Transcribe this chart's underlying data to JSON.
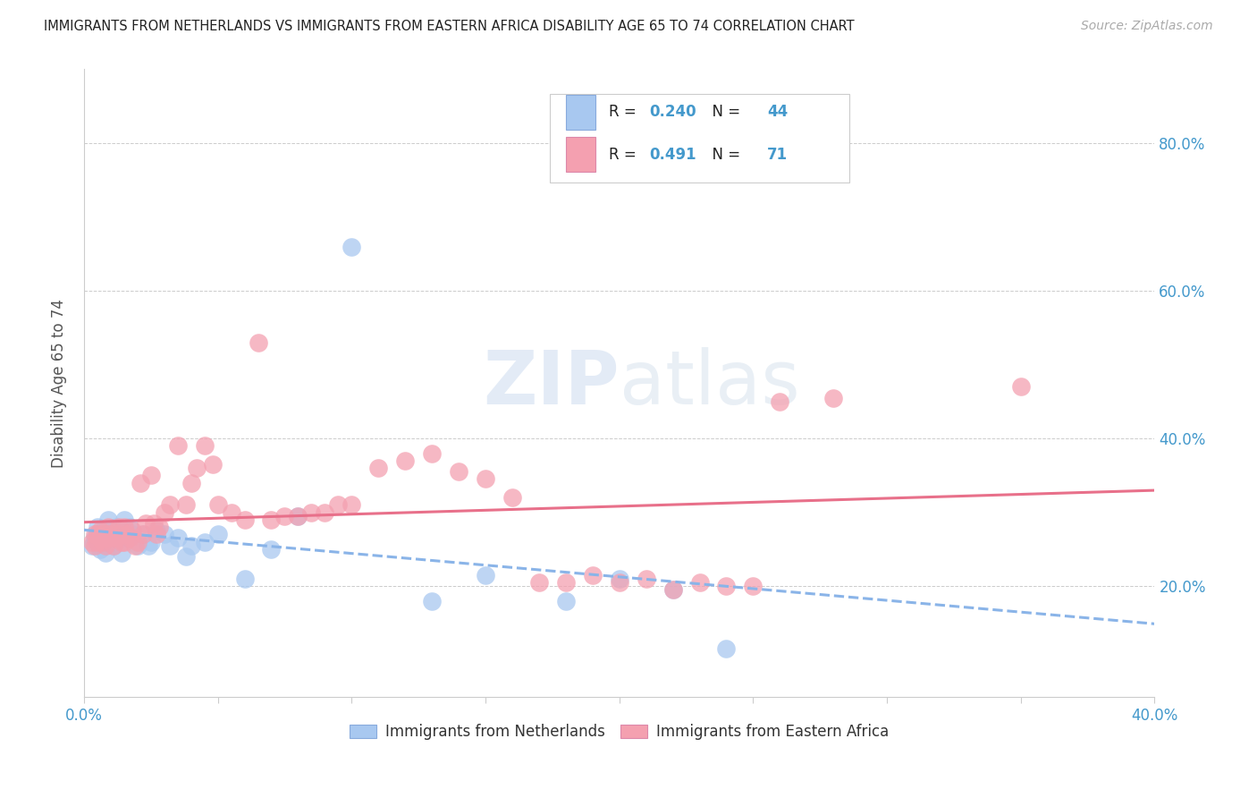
{
  "title": "IMMIGRANTS FROM NETHERLANDS VS IMMIGRANTS FROM EASTERN AFRICA DISABILITY AGE 65 TO 74 CORRELATION CHART",
  "source": "Source: ZipAtlas.com",
  "ylabel": "Disability Age 65 to 74",
  "xlim": [
    0.0,
    0.4
  ],
  "ylim": [
    0.05,
    0.9
  ],
  "watermark_line1": "ZIP",
  "watermark_line2": "atlas",
  "legend_R1": "0.240",
  "legend_N1": "44",
  "legend_R2": "0.491",
  "legend_N2": "71",
  "color_netherlands": "#a8c8f0",
  "color_eastern_africa": "#f4a0b0",
  "color_netherlands_trendline": "#8ab4e8",
  "color_eastern_africa_trendline": "#e8708a",
  "background_color": "#ffffff",
  "nl_x": [
    0.003,
    0.004,
    0.005,
    0.005,
    0.006,
    0.006,
    0.007,
    0.007,
    0.008,
    0.008,
    0.009,
    0.009,
    0.01,
    0.01,
    0.011,
    0.012,
    0.013,
    0.014,
    0.015,
    0.016,
    0.017,
    0.018,
    0.02,
    0.022,
    0.024,
    0.025,
    0.027,
    0.03,
    0.032,
    0.035,
    0.038,
    0.04,
    0.045,
    0.05,
    0.06,
    0.07,
    0.08,
    0.1,
    0.13,
    0.15,
    0.18,
    0.2,
    0.22,
    0.24
  ],
  "nl_y": [
    0.255,
    0.265,
    0.27,
    0.28,
    0.26,
    0.25,
    0.275,
    0.26,
    0.265,
    0.245,
    0.29,
    0.26,
    0.265,
    0.27,
    0.255,
    0.28,
    0.265,
    0.245,
    0.29,
    0.265,
    0.28,
    0.27,
    0.255,
    0.27,
    0.255,
    0.26,
    0.275,
    0.27,
    0.255,
    0.265,
    0.24,
    0.255,
    0.26,
    0.27,
    0.21,
    0.25,
    0.295,
    0.66,
    0.18,
    0.215,
    0.18,
    0.21,
    0.195,
    0.115
  ],
  "ea_x": [
    0.003,
    0.004,
    0.004,
    0.005,
    0.005,
    0.006,
    0.006,
    0.007,
    0.007,
    0.008,
    0.008,
    0.009,
    0.009,
    0.01,
    0.01,
    0.011,
    0.012,
    0.013,
    0.013,
    0.014,
    0.015,
    0.015,
    0.016,
    0.017,
    0.018,
    0.019,
    0.02,
    0.021,
    0.022,
    0.023,
    0.025,
    0.026,
    0.027,
    0.028,
    0.03,
    0.032,
    0.035,
    0.038,
    0.04,
    0.042,
    0.045,
    0.048,
    0.05,
    0.055,
    0.06,
    0.065,
    0.07,
    0.075,
    0.08,
    0.085,
    0.09,
    0.095,
    0.1,
    0.11,
    0.12,
    0.13,
    0.14,
    0.15,
    0.16,
    0.17,
    0.18,
    0.19,
    0.2,
    0.21,
    0.22,
    0.23,
    0.24,
    0.25,
    0.26,
    0.28,
    0.35
  ],
  "ea_y": [
    0.26,
    0.27,
    0.255,
    0.27,
    0.26,
    0.265,
    0.275,
    0.26,
    0.27,
    0.255,
    0.265,
    0.28,
    0.27,
    0.27,
    0.265,
    0.255,
    0.265,
    0.28,
    0.27,
    0.26,
    0.28,
    0.26,
    0.27,
    0.265,
    0.275,
    0.255,
    0.26,
    0.34,
    0.27,
    0.285,
    0.35,
    0.285,
    0.27,
    0.28,
    0.3,
    0.31,
    0.39,
    0.31,
    0.34,
    0.36,
    0.39,
    0.365,
    0.31,
    0.3,
    0.29,
    0.53,
    0.29,
    0.295,
    0.295,
    0.3,
    0.3,
    0.31,
    0.31,
    0.36,
    0.37,
    0.38,
    0.355,
    0.345,
    0.32,
    0.205,
    0.205,
    0.215,
    0.205,
    0.21,
    0.195,
    0.205,
    0.2,
    0.2,
    0.45,
    0.455,
    0.47
  ]
}
